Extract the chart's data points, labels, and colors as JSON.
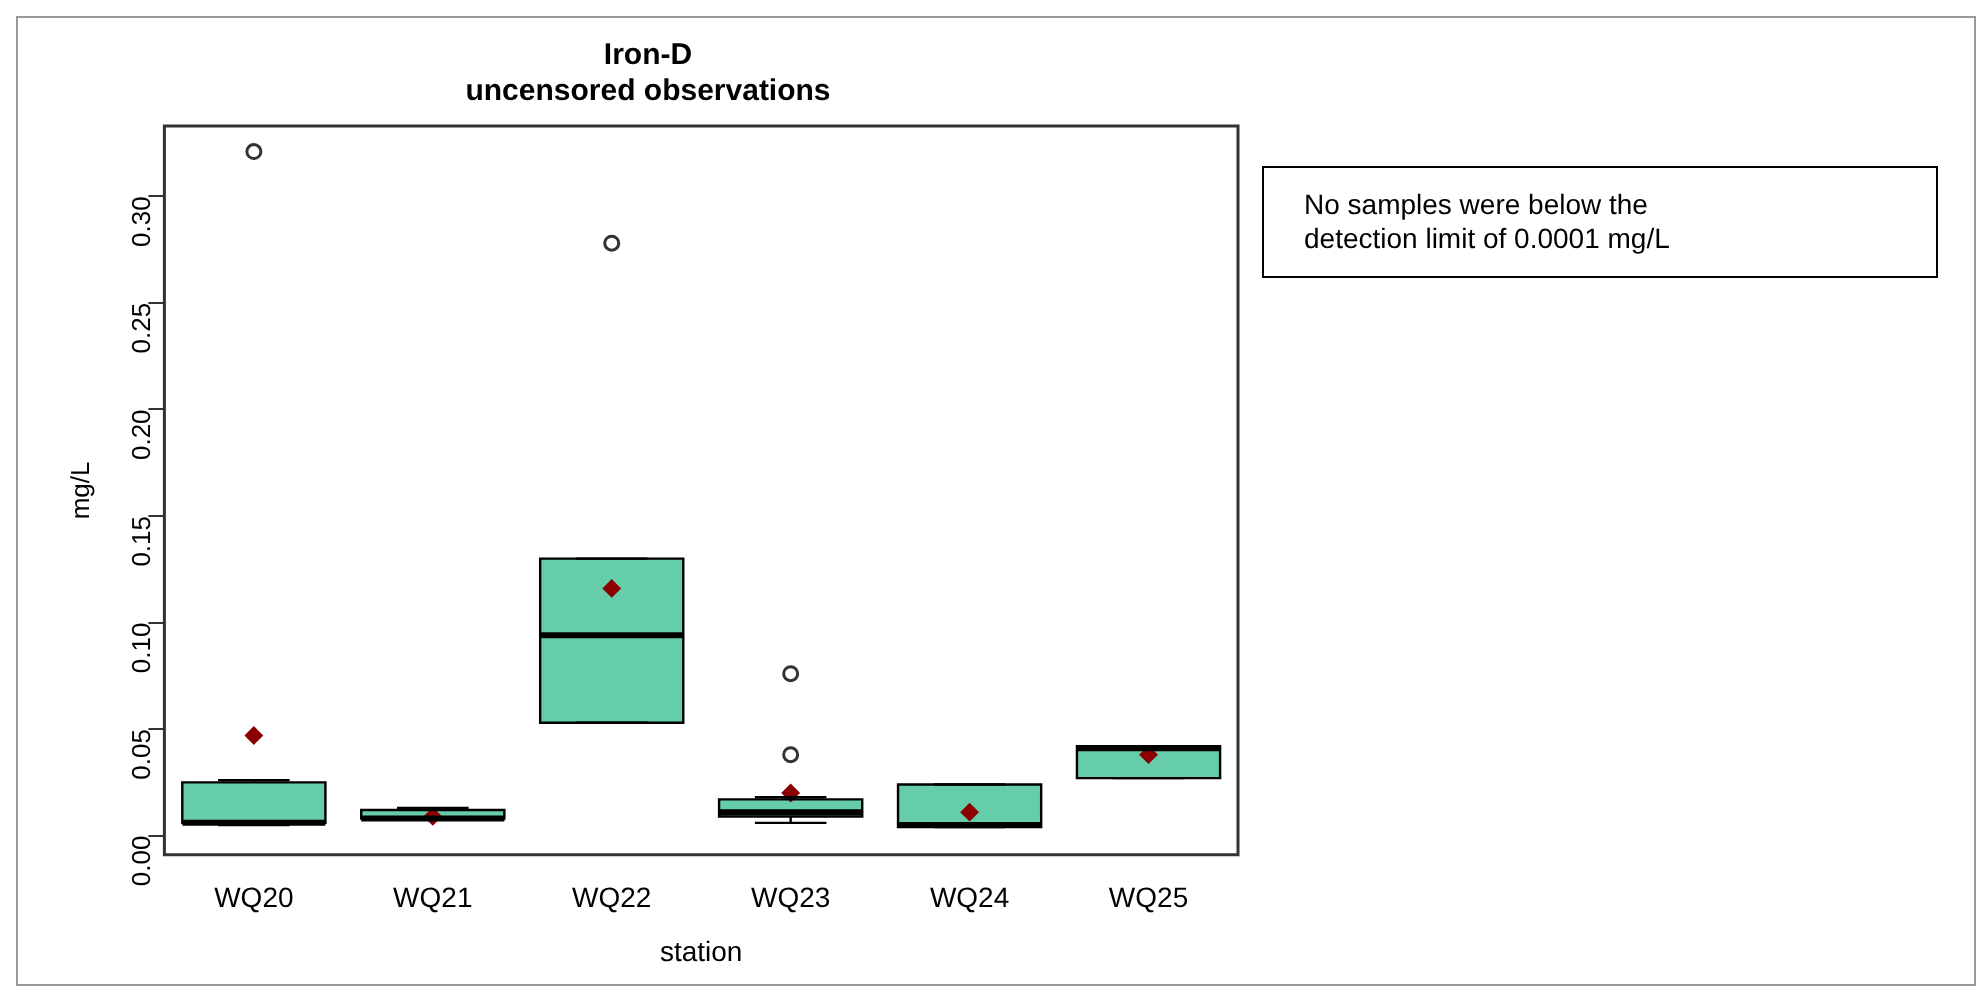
{
  "chart_data": {
    "type": "box",
    "title": "Iron-D",
    "subtitle": "uncensored observations",
    "xlabel": "station",
    "ylabel": "mg/L",
    "categories": [
      "WQ20",
      "WQ21",
      "WQ22",
      "WQ23",
      "WQ24",
      "WQ25"
    ],
    "series": [
      {
        "color": "#66cdaa",
        "boxes": [
          {
            "low": 0.005,
            "q1": 0.006,
            "median": 0.006,
            "q3": 0.025,
            "high": 0.026,
            "mean": 0.047,
            "outliers": [
              0.321
            ]
          },
          {
            "low": 0.008,
            "q1": 0.008,
            "median": 0.008,
            "q3": 0.012,
            "high": 0.013,
            "mean": 0.009
          },
          {
            "low": 0.053,
            "q1": 0.053,
            "median": 0.094,
            "q3": 0.13,
            "high": 0.13,
            "mean": 0.116,
            "outliers": [
              0.278
            ]
          },
          {
            "low": 0.006,
            "q1": 0.009,
            "median": 0.011,
            "q3": 0.017,
            "high": 0.018,
            "mean": 0.02,
            "outliers": [
              0.076,
              0.038
            ]
          },
          {
            "low": 0.004,
            "q1": 0.004,
            "median": 0.005,
            "q3": 0.024,
            "high": 0.024,
            "mean": 0.011
          },
          {
            "low": 0.027,
            "q1": 0.027,
            "median": 0.041,
            "q3": 0.042,
            "high": 0.042,
            "mean": 0.038
          }
        ]
      }
    ],
    "ylim": [
      -0.009,
      0.333
    ],
    "yticks": [
      {
        "value": 0,
        "label": "0.00"
      },
      0.05,
      {
        "value": 0.1,
        "label": "0.10"
      },
      0.15,
      {
        "value": 0.2,
        "label": "0.20"
      },
      0.25,
      {
        "value": 0.3,
        "label": "0.30"
      }
    ],
    "grid": false,
    "legend": false,
    "annotations": [
      "No samples were below the detection limit of 0.0001 mg/L"
    ]
  }
}
